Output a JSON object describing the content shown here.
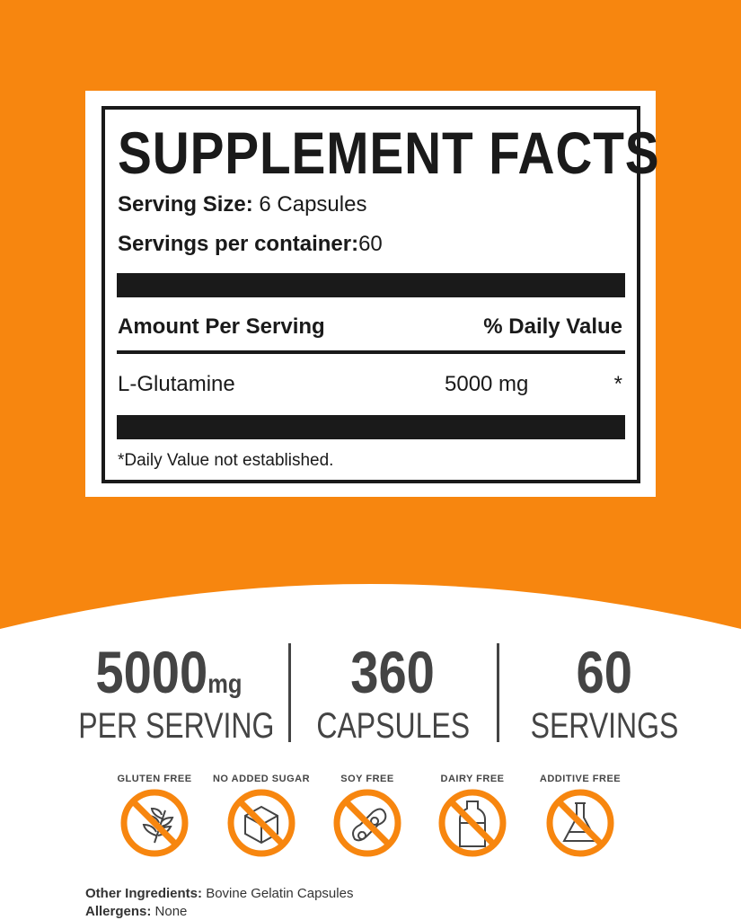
{
  "colors": {
    "brand_orange": "#f7860f",
    "text_dark": "#1a1a1a",
    "stat_gray": "#444444"
  },
  "facts": {
    "title": "SUPPLEMENT FACTS",
    "serving_size_label": "Serving Size:",
    "serving_size_value": "6 Capsules",
    "servings_label": "Servings per container:",
    "servings_value": "60",
    "amount_header": "Amount Per Serving",
    "dv_header": "% Daily Value",
    "ingredient": "L-Glutamine",
    "ingredient_amount": "5000 mg",
    "ingredient_dv": "*",
    "footnote": "*Daily Value not established."
  },
  "stats": [
    {
      "value": "5000",
      "unit": "mg",
      "label": "PER SERVING"
    },
    {
      "value": "360",
      "unit": "",
      "label": "CAPSULES"
    },
    {
      "value": "60",
      "unit": "",
      "label": "SERVINGS"
    }
  ],
  "badges": [
    {
      "label": "GLUTEN FREE",
      "icon": "wheat-icon"
    },
    {
      "label": "NO ADDED SUGAR",
      "icon": "sugar-cube-icon"
    },
    {
      "label": "SOY FREE",
      "icon": "soybean-icon"
    },
    {
      "label": "DAIRY FREE",
      "icon": "milk-bottle-icon"
    },
    {
      "label": "ADDITIVE FREE",
      "icon": "flask-icon"
    }
  ],
  "footer": {
    "other_label": "Other Ingredients:",
    "other_value": "Bovine Gelatin Capsules",
    "allergens_label": "Allergens:",
    "allergens_value": "None"
  }
}
